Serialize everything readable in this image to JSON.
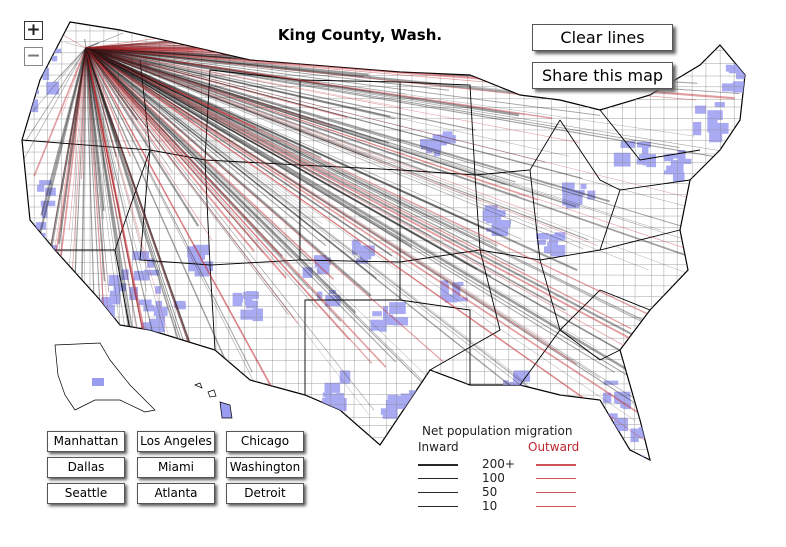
{
  "title": "King County, Wash.",
  "controls": {
    "zoom_in": "+",
    "zoom_out": "−",
    "clear": "Clear lines",
    "share": "Share this map"
  },
  "cities": [
    "Manhattan",
    "Los Angeles",
    "Chicago",
    "Dallas",
    "Miami",
    "Washington",
    "Seattle",
    "Atlanta",
    "Detroit"
  ],
  "legend": {
    "title": "Net population migration",
    "inward": "Inward",
    "outward": "Outward",
    "levels": [
      {
        "label": "200+",
        "width": 2.2
      },
      {
        "label": "100",
        "width": 1.6
      },
      {
        "label": "50",
        "width": 1.1
      },
      {
        "label": "10",
        "width": 0.7
      }
    ]
  },
  "colors": {
    "inward": "#111111",
    "outward": "#c0262d",
    "county_highlight": "#9a9cf2",
    "county_border": "#777777",
    "state_border": "#000000"
  }
}
